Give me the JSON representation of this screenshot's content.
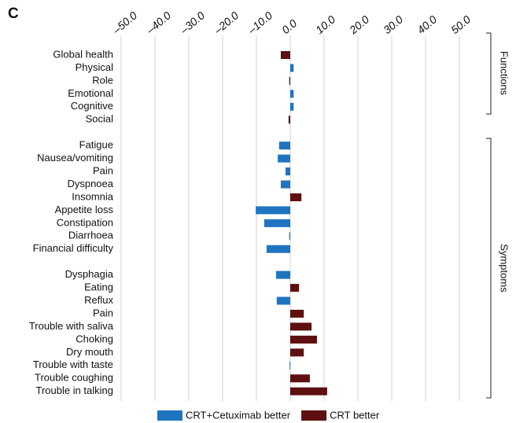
{
  "chart_data": {
    "type": "barh",
    "panel_label": "C",
    "categories": [
      "Global health",
      "Physical",
      "Role",
      "Emotional",
      "Cognitive",
      "Social",
      null,
      "Fatigue",
      "Nausea/vomiting",
      "Pain",
      "Dyspnoea",
      "Insomnia",
      "Appetite loss",
      "Constipation",
      "Diarrhoea",
      "Financial difficulty",
      null,
      "Dysphagia",
      "Eating",
      "Reflux",
      "Pain",
      "Trouble with saliva",
      "Choking",
      "Dry mouth",
      "Trouble with taste",
      "Trouble coughing",
      "Trouble in talking"
    ],
    "series": [
      {
        "name": "CRT+Cetuximab better",
        "color": "#1f74c0",
        "values": [
          null,
          1.0,
          null,
          1.0,
          1.0,
          null,
          null,
          -3.3,
          -3.7,
          -1.4,
          -2.8,
          null,
          -10.2,
          -7.7,
          -0.3,
          -7.0,
          null,
          -4.2,
          null,
          -4.0,
          null,
          null,
          null,
          null,
          -0.2,
          null,
          null
        ]
      },
      {
        "name": "CRT better",
        "color": "#5e0f10",
        "values": [
          -2.8,
          null,
          -0.3,
          null,
          null,
          -0.5,
          null,
          null,
          null,
          null,
          null,
          3.3,
          null,
          null,
          null,
          null,
          null,
          null,
          2.6,
          null,
          4.0,
          6.3,
          7.9,
          4.0,
          null,
          5.8,
          10.9
        ]
      }
    ],
    "xlim": [
      -50,
      50
    ],
    "xticks": [
      {
        "value": -50,
        "label": "–50.0"
      },
      {
        "value": -40,
        "label": "–40.0"
      },
      {
        "value": -30,
        "label": "–30.0"
      },
      {
        "value": -20,
        "label": "–20.0"
      },
      {
        "value": -10,
        "label": "–10.0"
      },
      {
        "value": 0,
        "label": "0.0"
      },
      {
        "value": 10,
        "label": "10.0"
      },
      {
        "value": 20,
        "label": "20.0"
      },
      {
        "value": 30,
        "label": "30.0"
      },
      {
        "value": 40,
        "label": "40.0"
      },
      {
        "value": 50,
        "label": "50.0"
      }
    ],
    "grid": true,
    "groups": [
      "Functions",
      "Symptoms"
    ]
  }
}
